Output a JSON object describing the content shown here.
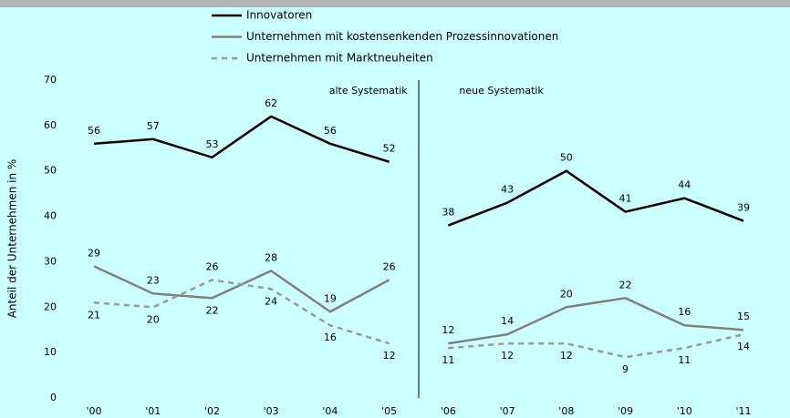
{
  "chart_data": {
    "type": "line",
    "y_label": "Anteil der Unternehmen in %",
    "groups": [
      {
        "label": "alte Systematik",
        "categories": [
          "'00",
          "'01",
          "'02",
          "'03",
          "'04",
          "'05"
        ]
      },
      {
        "label": "neue Systematik",
        "categories": [
          "'06",
          "'07",
          "'08",
          "'09",
          "'10",
          "'11"
        ]
      }
    ],
    "series": [
      {
        "name": "Innovatoren",
        "color": "#000000",
        "dash": false,
        "values": [
          56,
          57,
          53,
          62,
          56,
          52,
          38,
          43,
          50,
          41,
          44,
          39
        ]
      },
      {
        "name": "Unternehmen mit kostensenkenden Prozessinnovationen",
        "color": "#808080",
        "dash": false,
        "values": [
          29,
          23,
          22,
          28,
          19,
          26,
          12,
          14,
          20,
          22,
          16,
          15
        ]
      },
      {
        "name": "Unternehmen mit Marktneuheiten",
        "color": "#999999",
        "dash": true,
        "values": [
          21,
          20,
          26,
          24,
          16,
          12,
          11,
          12,
          12,
          9,
          11,
          14
        ]
      }
    ],
    "ylim": [
      0,
      70
    ],
    "yticks": [
      0,
      10,
      20,
      30,
      40,
      50,
      60,
      70
    ],
    "grid": false
  }
}
